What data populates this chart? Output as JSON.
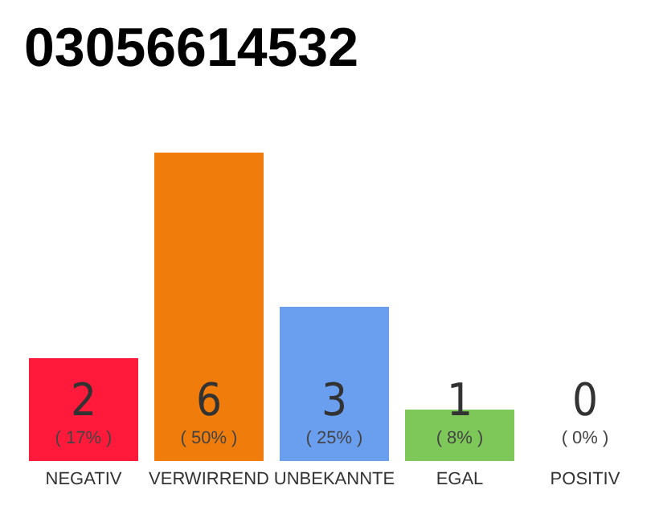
{
  "chart_data": {
    "type": "bar",
    "title": "03056614532",
    "categories": [
      "NEGATIV",
      "VERWIRREND",
      "UNBEKANNTE",
      "EGAL",
      "POSITIV"
    ],
    "values": [
      2,
      6,
      3,
      1,
      0
    ],
    "colors": [
      "#ff1a3c",
      "#f07d0b",
      "#6a9ff0",
      "#7ec85a",
      "#cccccc"
    ],
    "value_labels": [
      "2\n( 17% )",
      "6\n( 50% )",
      "3\n( 25% )",
      "1\n( 8% )",
      "0\n( 0% )"
    ]
  }
}
